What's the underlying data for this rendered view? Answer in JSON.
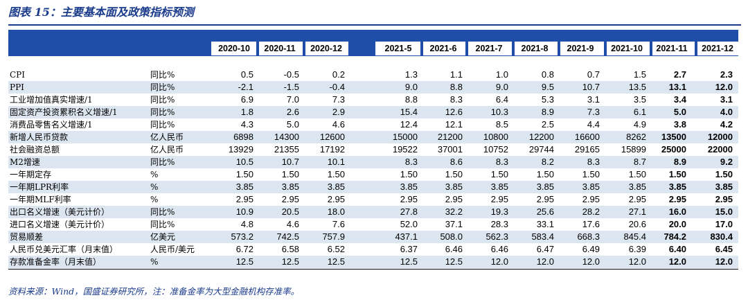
{
  "title": "图表 15：主要基本面及政策指标预测",
  "columns": [
    "2020-10",
    "2020-11",
    "2020-12",
    "2021-5",
    "2021-6",
    "2021-7",
    "2021-8",
    "2021-9",
    "2021-10",
    "2021-11",
    "2021-12"
  ],
  "rows": [
    {
      "label": "CPI",
      "unit": "同比%",
      "values": [
        "0.5",
        "-0.5",
        "0.2",
        "1.3",
        "1.1",
        "1.0",
        "0.8",
        "0.7",
        "1.5",
        "2.7",
        "2.3"
      ]
    },
    {
      "label": "PPI",
      "unit": "同比%",
      "values": [
        "-2.1",
        "-1.5",
        "-0.4",
        "9.0",
        "8.8",
        "9.0",
        "9.5",
        "10.7",
        "13.5",
        "13.1",
        "12.0"
      ]
    },
    {
      "label": "工业增加值真实增速/1",
      "unit": "同比%",
      "values": [
        "6.9",
        "7.0",
        "7.3",
        "8.8",
        "8.3",
        "6.4",
        "5.3",
        "3.1",
        "3.5",
        "3.4",
        "3.1"
      ]
    },
    {
      "label": "固定资产投资累积名义增速/1",
      "unit": "同比%",
      "values": [
        "1.8",
        "2.6",
        "2.9",
        "15.4",
        "12.6",
        "10.3",
        "8.9",
        "7.3",
        "6.1",
        "5.0",
        "4.0"
      ]
    },
    {
      "label": "消费品零售名义增速/1",
      "unit": "同比%",
      "values": [
        "4.3",
        "5.0",
        "4.6",
        "12.4",
        "12.1",
        "8.5",
        "2.5",
        "4.4",
        "4.9",
        "3.8",
        "4.2"
      ]
    },
    {
      "label": "新增人民币贷款",
      "unit": "亿人民币",
      "values": [
        "6898",
        "14300",
        "12600",
        "15000",
        "21200",
        "10800",
        "12200",
        "16600",
        "8262",
        "13500",
        "12000"
      ]
    },
    {
      "label": "社会融资总额",
      "unit": "亿人民币",
      "values": [
        "13929",
        "21355",
        "17192",
        "19522",
        "37001",
        "10752",
        "29744",
        "29165",
        "15899",
        "25000",
        "22000"
      ]
    },
    {
      "label": "M2增速",
      "unit": "同比%",
      "values": [
        "10.5",
        "10.7",
        "10.1",
        "8.3",
        "8.6",
        "8.3",
        "8.2",
        "8.3",
        "8.7",
        "8.9",
        "9.2"
      ]
    },
    {
      "label": "一年期定存",
      "unit": "%",
      "values": [
        "1.50",
        "1.50",
        "1.50",
        "1.50",
        "1.50",
        "1.50",
        "1.50",
        "1.50",
        "1.50",
        "1.50",
        "1.50"
      ]
    },
    {
      "label": "一年期LPR利率",
      "unit": "%",
      "values": [
        "3.85",
        "3.85",
        "3.85",
        "3.85",
        "3.85",
        "3.85",
        "3.85",
        "3.85",
        "3.85",
        "3.85",
        "3.85"
      ]
    },
    {
      "label": "一年期MLF利率",
      "unit": "%",
      "values": [
        "2.95",
        "2.95",
        "2.95",
        "2.95",
        "2.95",
        "2.95",
        "2.95",
        "2.95",
        "2.95",
        "2.95",
        "2.95"
      ]
    },
    {
      "label": "出口名义增速（美元计价）",
      "unit": "同比%",
      "values": [
        "10.9",
        "20.5",
        "18.0",
        "27.8",
        "32.2",
        "19.3",
        "25.6",
        "28.2",
        "27.1",
        "16.0",
        "15.0"
      ]
    },
    {
      "label": "进口名义增速（美元计价）",
      "unit": "同比%",
      "values": [
        "4.8",
        "4.6",
        "7.6",
        "52.0",
        "37.1",
        "28.3",
        "33.1",
        "17.6",
        "20.6",
        "20.0",
        "17.0"
      ]
    },
    {
      "label": "贸易顺差",
      "unit": "亿美元",
      "values": [
        "573.2",
        "742.5",
        "757.9",
        "437.1",
        "508.0",
        "562.3",
        "583.4",
        "668.3",
        "845.4",
        "784.2",
        "830.4"
      ]
    },
    {
      "label": "人民币兑美元汇率（月末值）",
      "unit": "人民币/美元",
      "values": [
        "6.72",
        "6.58",
        "6.52",
        "6.37",
        "6.46",
        "6.46",
        "6.47",
        "6.49",
        "6.39",
        "6.40",
        "6.45"
      ]
    },
    {
      "label": "存款准备金率（月末值）",
      "unit": "%",
      "values": [
        "12.5",
        "12.5",
        "12.5",
        "12.5",
        "12.5",
        "12.0",
        "12.0",
        "12.0",
        "12.0",
        "12.0",
        "12.0"
      ]
    }
  ],
  "source": "资料来源：Wind，国盛证券研究所，注：准备金率为大型金融机构存准率。"
}
